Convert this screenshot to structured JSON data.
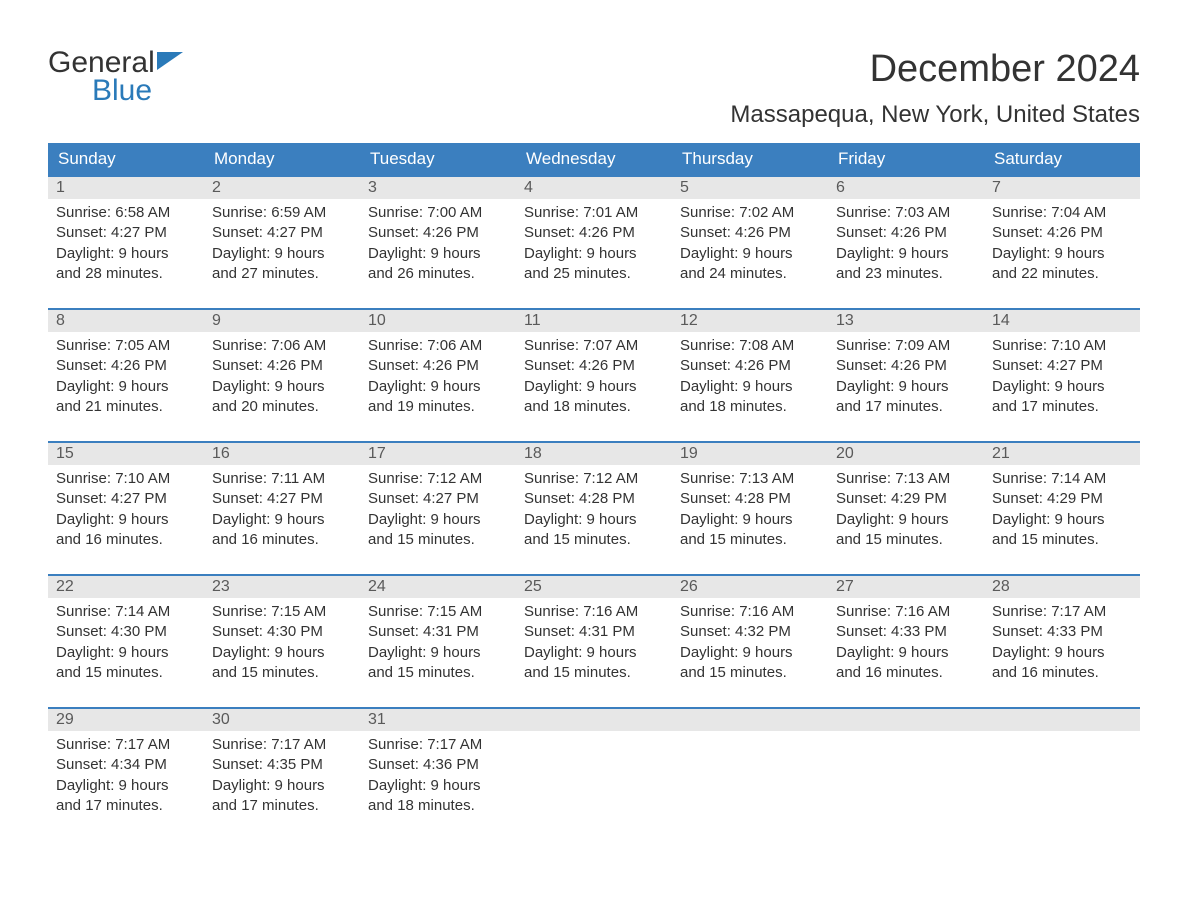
{
  "logo": {
    "line1": "General",
    "line2": "Blue"
  },
  "title": "December 2024",
  "location": "Massapequa, New York, United States",
  "colors": {
    "header_bg": "#3b7fbf",
    "header_text": "#ffffff",
    "daynum_bg": "#e7e7e7",
    "daynum_text": "#5a5a5a",
    "body_text": "#333333",
    "logo_blue": "#2a7ab9",
    "background": "#ffffff",
    "week_border": "#3b7fbf"
  },
  "typography": {
    "title_fontsize": 38,
    "location_fontsize": 24,
    "header_fontsize": 17,
    "daynum_fontsize": 16,
    "body_fontsize": 15,
    "logo_fontsize": 30
  },
  "day_headers": [
    "Sunday",
    "Monday",
    "Tuesday",
    "Wednesday",
    "Thursday",
    "Friday",
    "Saturday"
  ],
  "weeks": [
    [
      {
        "n": "1",
        "sr": "Sunrise: 6:58 AM",
        "ss": "Sunset: 4:27 PM",
        "d1": "Daylight: 9 hours",
        "d2": "and 28 minutes."
      },
      {
        "n": "2",
        "sr": "Sunrise: 6:59 AM",
        "ss": "Sunset: 4:27 PM",
        "d1": "Daylight: 9 hours",
        "d2": "and 27 minutes."
      },
      {
        "n": "3",
        "sr": "Sunrise: 7:00 AM",
        "ss": "Sunset: 4:26 PM",
        "d1": "Daylight: 9 hours",
        "d2": "and 26 minutes."
      },
      {
        "n": "4",
        "sr": "Sunrise: 7:01 AM",
        "ss": "Sunset: 4:26 PM",
        "d1": "Daylight: 9 hours",
        "d2": "and 25 minutes."
      },
      {
        "n": "5",
        "sr": "Sunrise: 7:02 AM",
        "ss": "Sunset: 4:26 PM",
        "d1": "Daylight: 9 hours",
        "d2": "and 24 minutes."
      },
      {
        "n": "6",
        "sr": "Sunrise: 7:03 AM",
        "ss": "Sunset: 4:26 PM",
        "d1": "Daylight: 9 hours",
        "d2": "and 23 minutes."
      },
      {
        "n": "7",
        "sr": "Sunrise: 7:04 AM",
        "ss": "Sunset: 4:26 PM",
        "d1": "Daylight: 9 hours",
        "d2": "and 22 minutes."
      }
    ],
    [
      {
        "n": "8",
        "sr": "Sunrise: 7:05 AM",
        "ss": "Sunset: 4:26 PM",
        "d1": "Daylight: 9 hours",
        "d2": "and 21 minutes."
      },
      {
        "n": "9",
        "sr": "Sunrise: 7:06 AM",
        "ss": "Sunset: 4:26 PM",
        "d1": "Daylight: 9 hours",
        "d2": "and 20 minutes."
      },
      {
        "n": "10",
        "sr": "Sunrise: 7:06 AM",
        "ss": "Sunset: 4:26 PM",
        "d1": "Daylight: 9 hours",
        "d2": "and 19 minutes."
      },
      {
        "n": "11",
        "sr": "Sunrise: 7:07 AM",
        "ss": "Sunset: 4:26 PM",
        "d1": "Daylight: 9 hours",
        "d2": "and 18 minutes."
      },
      {
        "n": "12",
        "sr": "Sunrise: 7:08 AM",
        "ss": "Sunset: 4:26 PM",
        "d1": "Daylight: 9 hours",
        "d2": "and 18 minutes."
      },
      {
        "n": "13",
        "sr": "Sunrise: 7:09 AM",
        "ss": "Sunset: 4:26 PM",
        "d1": "Daylight: 9 hours",
        "d2": "and 17 minutes."
      },
      {
        "n": "14",
        "sr": "Sunrise: 7:10 AM",
        "ss": "Sunset: 4:27 PM",
        "d1": "Daylight: 9 hours",
        "d2": "and 17 minutes."
      }
    ],
    [
      {
        "n": "15",
        "sr": "Sunrise: 7:10 AM",
        "ss": "Sunset: 4:27 PM",
        "d1": "Daylight: 9 hours",
        "d2": "and 16 minutes."
      },
      {
        "n": "16",
        "sr": "Sunrise: 7:11 AM",
        "ss": "Sunset: 4:27 PM",
        "d1": "Daylight: 9 hours",
        "d2": "and 16 minutes."
      },
      {
        "n": "17",
        "sr": "Sunrise: 7:12 AM",
        "ss": "Sunset: 4:27 PM",
        "d1": "Daylight: 9 hours",
        "d2": "and 15 minutes."
      },
      {
        "n": "18",
        "sr": "Sunrise: 7:12 AM",
        "ss": "Sunset: 4:28 PM",
        "d1": "Daylight: 9 hours",
        "d2": "and 15 minutes."
      },
      {
        "n": "19",
        "sr": "Sunrise: 7:13 AM",
        "ss": "Sunset: 4:28 PM",
        "d1": "Daylight: 9 hours",
        "d2": "and 15 minutes."
      },
      {
        "n": "20",
        "sr": "Sunrise: 7:13 AM",
        "ss": "Sunset: 4:29 PM",
        "d1": "Daylight: 9 hours",
        "d2": "and 15 minutes."
      },
      {
        "n": "21",
        "sr": "Sunrise: 7:14 AM",
        "ss": "Sunset: 4:29 PM",
        "d1": "Daylight: 9 hours",
        "d2": "and 15 minutes."
      }
    ],
    [
      {
        "n": "22",
        "sr": "Sunrise: 7:14 AM",
        "ss": "Sunset: 4:30 PM",
        "d1": "Daylight: 9 hours",
        "d2": "and 15 minutes."
      },
      {
        "n": "23",
        "sr": "Sunrise: 7:15 AM",
        "ss": "Sunset: 4:30 PM",
        "d1": "Daylight: 9 hours",
        "d2": "and 15 minutes."
      },
      {
        "n": "24",
        "sr": "Sunrise: 7:15 AM",
        "ss": "Sunset: 4:31 PM",
        "d1": "Daylight: 9 hours",
        "d2": "and 15 minutes."
      },
      {
        "n": "25",
        "sr": "Sunrise: 7:16 AM",
        "ss": "Sunset: 4:31 PM",
        "d1": "Daylight: 9 hours",
        "d2": "and 15 minutes."
      },
      {
        "n": "26",
        "sr": "Sunrise: 7:16 AM",
        "ss": "Sunset: 4:32 PM",
        "d1": "Daylight: 9 hours",
        "d2": "and 15 minutes."
      },
      {
        "n": "27",
        "sr": "Sunrise: 7:16 AM",
        "ss": "Sunset: 4:33 PM",
        "d1": "Daylight: 9 hours",
        "d2": "and 16 minutes."
      },
      {
        "n": "28",
        "sr": "Sunrise: 7:17 AM",
        "ss": "Sunset: 4:33 PM",
        "d1": "Daylight: 9 hours",
        "d2": "and 16 minutes."
      }
    ],
    [
      {
        "n": "29",
        "sr": "Sunrise: 7:17 AM",
        "ss": "Sunset: 4:34 PM",
        "d1": "Daylight: 9 hours",
        "d2": "and 17 minutes."
      },
      {
        "n": "30",
        "sr": "Sunrise: 7:17 AM",
        "ss": "Sunset: 4:35 PM",
        "d1": "Daylight: 9 hours",
        "d2": "and 17 minutes."
      },
      {
        "n": "31",
        "sr": "Sunrise: 7:17 AM",
        "ss": "Sunset: 4:36 PM",
        "d1": "Daylight: 9 hours",
        "d2": "and 18 minutes."
      },
      null,
      null,
      null,
      null
    ]
  ]
}
